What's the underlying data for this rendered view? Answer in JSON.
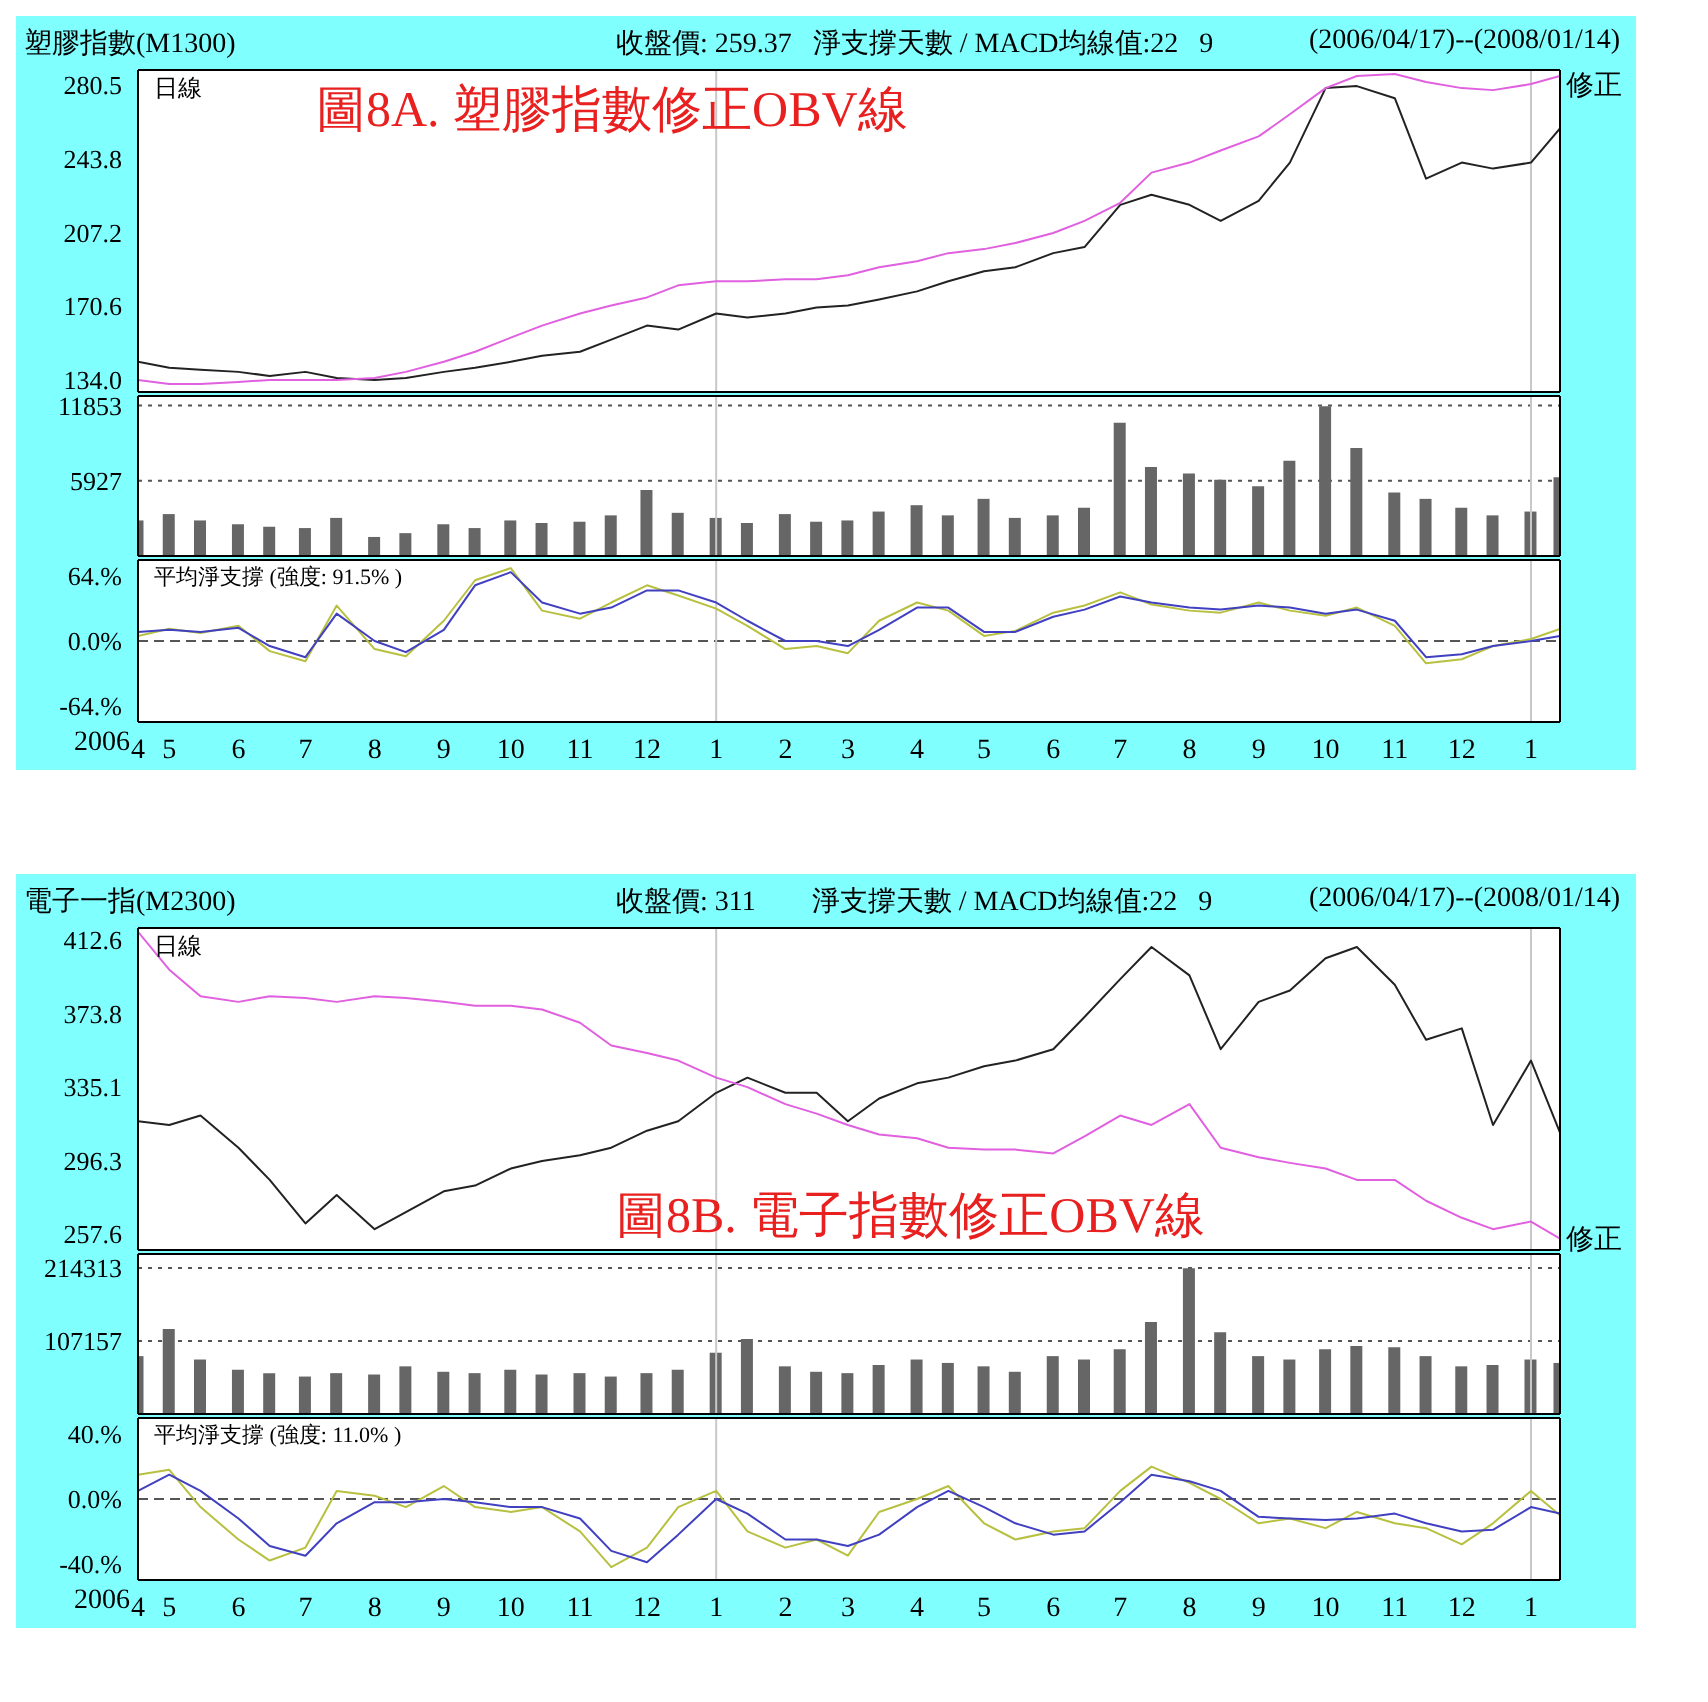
{
  "chart_data": [
    {
      "type": "line",
      "title": "塑膠指數(M1300)",
      "subtitle": "收盤價: 259.37   淨支撐天數 / MACD均線值:22   9",
      "annotations": [
        "(2006/04/17)--(2008/01/14)",
        "日線",
        "圖8A. 塑膠指數修正OBV線"
      ],
      "x": [
        "2006-04-17",
        "2006-05-01",
        "2006-05-15",
        "2006-06-01",
        "2006-06-15",
        "2006-07-01",
        "2006-07-15",
        "2006-08-01",
        "2006-08-15",
        "2006-09-01",
        "2006-09-15",
        "2006-10-01",
        "2006-10-15",
        "2006-11-01",
        "2006-11-15",
        "2006-12-01",
        "2006-12-15",
        "2007-01-01",
        "2007-01-15",
        "2007-02-01",
        "2007-02-15",
        "2007-03-01",
        "2007-03-15",
        "2007-04-01",
        "2007-04-15",
        "2007-05-01",
        "2007-05-15",
        "2007-06-01",
        "2007-06-15",
        "2007-07-01",
        "2007-07-15",
        "2007-08-01",
        "2007-08-15",
        "2007-09-01",
        "2007-09-15",
        "2007-10-01",
        "2007-10-15",
        "2007-11-01",
        "2007-11-15",
        "2007-12-01",
        "2007-12-15",
        "2008-01-01",
        "2008-01-14"
      ],
      "series": [
        {
          "color": "#222222",
          "values": [
            143,
            140,
            139,
            138,
            136,
            138,
            135,
            134,
            135,
            138,
            140,
            143,
            146,
            148,
            154,
            161,
            159,
            167,
            165,
            167,
            170,
            171,
            174,
            178,
            183,
            188,
            190,
            197,
            200,
            221,
            226,
            221,
            213,
            223,
            242,
            279,
            280,
            274,
            234,
            242,
            239,
            242,
            259
          ]
        },
        {
          "name": "修正",
          "color": "#e060e0",
          "values": [
            134,
            132,
            132,
            133,
            134,
            134,
            134,
            135,
            138,
            143,
            148,
            155,
            161,
            167,
            171,
            175,
            181,
            183,
            183,
            184,
            184,
            186,
            190,
            193,
            197,
            199,
            202,
            207,
            213,
            222,
            237,
            242,
            248,
            255,
            266,
            279,
            285,
            286,
            282,
            279,
            278,
            281,
            285
          ]
        }
      ],
      "xlim": [
        "2006-04-17",
        "2008-01-14"
      ],
      "ylim": [
        128,
        288
      ],
      "yticks": [
        {
          "value": 134,
          "label": "134.0"
        },
        170.6,
        207.2,
        243.8,
        280.5
      ],
      "tick_labels": "y",
      "marker": "none",
      "ref_lines": [
        {
          "axis": "x",
          "value": "2007-01-01",
          "color": "#c8c8c8"
        },
        {
          "axis": "x",
          "value": "2008-01-01",
          "color": "#c8c8c8"
        }
      ]
    },
    {
      "type": "bar",
      "x": [
        "2006-04-17",
        "2006-05-01",
        "2006-05-15",
        "2006-06-01",
        "2006-06-15",
        "2006-07-01",
        "2006-07-15",
        "2006-08-01",
        "2006-08-15",
        "2006-09-01",
        "2006-09-15",
        "2006-10-01",
        "2006-10-15",
        "2006-11-01",
        "2006-11-15",
        "2006-12-01",
        "2006-12-15",
        "2007-01-01",
        "2007-01-15",
        "2007-02-01",
        "2007-02-15",
        "2007-03-01",
        "2007-03-15",
        "2007-04-01",
        "2007-04-15",
        "2007-05-01",
        "2007-05-15",
        "2007-06-01",
        "2007-06-15",
        "2007-07-01",
        "2007-07-15",
        "2007-08-01",
        "2007-08-15",
        "2007-09-01",
        "2007-09-15",
        "2007-10-01",
        "2007-10-15",
        "2007-11-01",
        "2007-11-15",
        "2007-12-01",
        "2007-12-15",
        "2008-01-01",
        "2008-01-14"
      ],
      "values": [
        2800,
        3300,
        2800,
        2500,
        2300,
        2200,
        3000,
        1500,
        1800,
        2500,
        2200,
        2800,
        2600,
        2700,
        3200,
        5200,
        3400,
        3000,
        2600,
        3300,
        2700,
        2800,
        3500,
        4000,
        3200,
        4500,
        3000,
        3200,
        3800,
        10500,
        7000,
        6500,
        6000,
        5500,
        7500,
        11800,
        8500,
        5000,
        4500,
        3800,
        3200,
        3500,
        6200
      ],
      "color": "#666666",
      "xlim": [
        "2006-04-17",
        "2008-01-14"
      ],
      "ylim": [
        0,
        12600
      ],
      "yticks": [
        5927,
        11853
      ],
      "grid": "y",
      "tick_labels": "y",
      "ref_lines": [
        {
          "axis": "x",
          "value": "2007-01-01",
          "color": "#c8c8c8"
        },
        {
          "axis": "x",
          "value": "2008-01-01",
          "color": "#c8c8c8"
        }
      ]
    },
    {
      "type": "line",
      "annotations": [
        "平均淨支撐 (強度: 91.5% )"
      ],
      "xlabel": "2006",
      "x": [
        "2006-04-17",
        "2006-05-01",
        "2006-05-15",
        "2006-06-01",
        "2006-06-15",
        "2006-07-01",
        "2006-07-15",
        "2006-08-01",
        "2006-08-15",
        "2006-09-01",
        "2006-09-15",
        "2006-10-01",
        "2006-10-15",
        "2006-11-01",
        "2006-11-15",
        "2006-12-01",
        "2006-12-15",
        "2007-01-01",
        "2007-01-15",
        "2007-02-01",
        "2007-02-15",
        "2007-03-01",
        "2007-03-15",
        "2007-04-01",
        "2007-04-15",
        "2007-05-01",
        "2007-05-15",
        "2007-06-01",
        "2007-06-15",
        "2007-07-01",
        "2007-07-15",
        "2007-08-01",
        "2007-08-15",
        "2007-09-01",
        "2007-09-15",
        "2007-10-01",
        "2007-10-15",
        "2007-11-01",
        "2007-11-15",
        "2007-12-01",
        "2007-12-15",
        "2008-01-01",
        "2008-01-14"
      ],
      "series": [
        {
          "color": "#b8c040",
          "values": [
            5,
            12,
            8,
            15,
            -10,
            -20,
            35,
            -8,
            -15,
            20,
            60,
            72,
            30,
            22,
            38,
            55,
            45,
            32,
            15,
            -8,
            -5,
            -12,
            20,
            38,
            30,
            5,
            10,
            28,
            35,
            48,
            36,
            30,
            28,
            38,
            30,
            25,
            33,
            15,
            -22,
            -18,
            -5,
            2,
            12
          ]
        },
        {
          "color": "#4040c0",
          "values": [
            9,
            11,
            9,
            13,
            -5,
            -16,
            27,
            0,
            -11,
            11,
            55,
            68,
            38,
            27,
            33,
            50,
            50,
            38,
            20,
            0,
            0,
            -5,
            11,
            33,
            33,
            9,
            9,
            24,
            31,
            44,
            38,
            33,
            31,
            35,
            33,
            27,
            31,
            20,
            -16,
            -13,
            -5,
            0,
            5
          ]
        }
      ],
      "xlim": [
        "2006-04-17",
        "2008-01-14"
      ],
      "ylim": [
        -80,
        80
      ],
      "yticks": [
        {
          "value": 64,
          "label": "64.%"
        },
        {
          "value": 0,
          "label": "0.0%"
        },
        {
          "value": -64,
          "label": "-64.%"
        }
      ],
      "xticks": [
        {
          "value": "2006-04-17",
          "label": "4"
        },
        {
          "value": "2006-05-01",
          "label": "5"
        },
        {
          "value": "2006-06-01",
          "label": "6"
        },
        {
          "value": "2006-07-01",
          "label": "7"
        },
        {
          "value": "2006-08-01",
          "label": "8"
        },
        {
          "value": "2006-09-01",
          "label": "9"
        },
        {
          "value": "2006-10-01",
          "label": "10"
        },
        {
          "value": "2006-11-01",
          "label": "11"
        },
        {
          "value": "2006-12-01",
          "label": "12"
        },
        {
          "value": "2007-01-01",
          "label": "1"
        },
        {
          "value": "2007-02-01",
          "label": "2"
        },
        {
          "value": "2007-03-01",
          "label": "3"
        },
        {
          "value": "2007-04-01",
          "label": "4"
        },
        {
          "value": "2007-05-01",
          "label": "5"
        },
        {
          "value": "2007-06-01",
          "label": "6"
        },
        {
          "value": "2007-07-01",
          "label": "7"
        },
        {
          "value": "2007-08-01",
          "label": "8"
        },
        {
          "value": "2007-09-01",
          "label": "9"
        },
        {
          "value": "2007-10-01",
          "label": "10"
        },
        {
          "value": "2007-11-01",
          "label": "11"
        },
        {
          "value": "2007-12-01",
          "label": "12"
        },
        {
          "value": "2008-01-01",
          "label": "1"
        }
      ],
      "marker": "none",
      "ref_lines": [
        {
          "axis": "y",
          "value": 0,
          "color": "#555555",
          "line_style": "dashed"
        },
        {
          "axis": "x",
          "value": "2007-01-01",
          "color": "#c8c8c8"
        },
        {
          "axis": "x",
          "value": "2008-01-01",
          "color": "#c8c8c8"
        }
      ]
    },
    {
      "type": "line",
      "title": "電子一指(M2300)",
      "subtitle": "收盤價: 311        淨支撐天數 / MACD均線值:22   9",
      "annotations": [
        "(2006/04/17)--(2008/01/14)",
        "日線",
        "圖8B. 電子指數修正OBV線"
      ],
      "x": [
        "2006-04-17",
        "2006-05-01",
        "2006-05-15",
        "2006-06-01",
        "2006-06-15",
        "2006-07-01",
        "2006-07-15",
        "2006-08-01",
        "2006-08-15",
        "2006-09-01",
        "2006-09-15",
        "2006-10-01",
        "2006-10-15",
        "2006-11-01",
        "2006-11-15",
        "2006-12-01",
        "2006-12-15",
        "2007-01-01",
        "2007-01-15",
        "2007-02-01",
        "2007-02-15",
        "2007-03-01",
        "2007-03-15",
        "2007-04-01",
        "2007-04-15",
        "2007-05-01",
        "2007-05-15",
        "2007-06-01",
        "2007-06-15",
        "2007-07-01",
        "2007-07-15",
        "2007-08-01",
        "2007-08-15",
        "2007-09-01",
        "2007-09-15",
        "2007-10-01",
        "2007-10-15",
        "2007-11-01",
        "2007-11-15",
        "2007-12-01",
        "2007-12-15",
        "2008-01-01",
        "2008-01-14"
      ],
      "series": [
        {
          "color": "#222222",
          "values": [
            317,
            315,
            320,
            303,
            286,
            263,
            278,
            260,
            269,
            280,
            283,
            292,
            296,
            299,
            303,
            312,
            317,
            332,
            340,
            332,
            332,
            317,
            329,
            337,
            340,
            346,
            349,
            355,
            372,
            392,
            409,
            394,
            355,
            380,
            386,
            403,
            409,
            389,
            360,
            366,
            315,
            349,
            311
          ]
        },
        {
          "name": "修正",
          "color": "#e060e0",
          "values": [
            417,
            397,
            383,
            380,
            383,
            382,
            380,
            383,
            382,
            380,
            378,
            378,
            376,
            369,
            357,
            353,
            349,
            340,
            335,
            326,
            321,
            315,
            310,
            308,
            303,
            302,
            302,
            300,
            309,
            320,
            315,
            326,
            303,
            298,
            295,
            292,
            286,
            286,
            275,
            266,
            260,
            264,
            255
          ]
        }
      ],
      "xlim": [
        "2006-04-17",
        "2008-01-14"
      ],
      "ylim": [
        249,
        419
      ],
      "yticks": [
        257.6,
        296.3,
        335.1,
        373.8,
        412.6
      ],
      "tick_labels": "y",
      "marker": "none",
      "ref_lines": [
        {
          "axis": "x",
          "value": "2007-01-01",
          "color": "#c8c8c8"
        },
        {
          "axis": "x",
          "value": "2008-01-01",
          "color": "#c8c8c8"
        }
      ]
    },
    {
      "type": "bar",
      "x": [
        "2006-04-17",
        "2006-05-01",
        "2006-05-15",
        "2006-06-01",
        "2006-06-15",
        "2006-07-01",
        "2006-07-15",
        "2006-08-01",
        "2006-08-15",
        "2006-09-01",
        "2006-09-15",
        "2006-10-01",
        "2006-10-15",
        "2006-11-01",
        "2006-11-15",
        "2006-12-01",
        "2006-12-15",
        "2007-01-01",
        "2007-01-15",
        "2007-02-01",
        "2007-02-15",
        "2007-03-01",
        "2007-03-15",
        "2007-04-01",
        "2007-04-15",
        "2007-05-01",
        "2007-05-15",
        "2007-06-01",
        "2007-06-15",
        "2007-07-01",
        "2007-07-15",
        "2007-08-01",
        "2007-08-15",
        "2007-09-01",
        "2007-09-15",
        "2007-10-01",
        "2007-10-15",
        "2007-11-01",
        "2007-11-15",
        "2007-12-01",
        "2007-12-15",
        "2008-01-01",
        "2008-01-14"
      ],
      "values": [
        85000,
        125000,
        80000,
        65000,
        60000,
        55000,
        60000,
        58000,
        70000,
        62000,
        60000,
        65000,
        58000,
        60000,
        55000,
        60000,
        65000,
        90000,
        110000,
        70000,
        62000,
        60000,
        72000,
        80000,
        75000,
        70000,
        62000,
        85000,
        80000,
        95000,
        135000,
        214000,
        120000,
        85000,
        80000,
        95000,
        100000,
        98000,
        85000,
        70000,
        72000,
        80000,
        75000
      ],
      "color": "#666666",
      "xlim": [
        "2006-04-17",
        "2008-01-14"
      ],
      "ylim": [
        0,
        235000
      ],
      "yticks": [
        107157,
        214313
      ],
      "grid": "y",
      "tick_labels": "y",
      "ref_lines": [
        {
          "axis": "x",
          "value": "2007-01-01",
          "color": "#c8c8c8"
        },
        {
          "axis": "x",
          "value": "2008-01-01",
          "color": "#c8c8c8"
        }
      ]
    },
    {
      "type": "line",
      "annotations": [
        "平均淨支撐 (強度: 11.0% )"
      ],
      "xlabel": "2006",
      "x": [
        "2006-04-17",
        "2006-05-01",
        "2006-05-15",
        "2006-06-01",
        "2006-06-15",
        "2006-07-01",
        "2006-07-15",
        "2006-08-01",
        "2006-08-15",
        "2006-09-01",
        "2006-09-15",
        "2006-10-01",
        "2006-10-15",
        "2006-11-01",
        "2006-11-15",
        "2006-12-01",
        "2006-12-15",
        "2007-01-01",
        "2007-01-15",
        "2007-02-01",
        "2007-02-15",
        "2007-03-01",
        "2007-03-15",
        "2007-04-01",
        "2007-04-15",
        "2007-05-01",
        "2007-05-15",
        "2007-06-01",
        "2007-06-15",
        "2007-07-01",
        "2007-07-15",
        "2007-08-01",
        "2007-08-15",
        "2007-09-01",
        "2007-09-15",
        "2007-10-01",
        "2007-10-15",
        "2007-11-01",
        "2007-11-15",
        "2007-12-01",
        "2007-12-15",
        "2008-01-01",
        "2008-01-14"
      ],
      "series": [
        {
          "color": "#b8c040",
          "values": [
            15,
            18,
            -5,
            -25,
            -38,
            -30,
            5,
            2,
            -5,
            8,
            -5,
            -8,
            -5,
            -20,
            -42,
            -30,
            -5,
            5,
            -20,
            -30,
            -25,
            -35,
            -8,
            0,
            8,
            -15,
            -25,
            -20,
            -18,
            5,
            20,
            10,
            0,
            -15,
            -12,
            -18,
            -8,
            -15,
            -18,
            -28,
            -15,
            5,
            -10
          ]
        },
        {
          "color": "#4040c0",
          "values": [
            5,
            15,
            5,
            -12,
            -29,
            -35,
            -15,
            -2,
            -2,
            0,
            -2,
            -5,
            -5,
            -12,
            -32,
            -39,
            -22,
            0,
            -9,
            -25,
            -25,
            -29,
            -22,
            -5,
            5,
            -5,
            -15,
            -22,
            -20,
            -2,
            15,
            11,
            5,
            -11,
            -12,
            -13,
            -12,
            -9,
            -15,
            -20,
            -19,
            -5,
            -9
          ]
        }
      ],
      "xlim": [
        "2006-04-17",
        "2008-01-14"
      ],
      "ylim": [
        -50,
        50
      ],
      "yticks": [
        {
          "value": 40,
          "label": "40.%"
        },
        {
          "value": 0,
          "label": "0.0%"
        },
        {
          "value": -40,
          "label": "-40.%"
        }
      ],
      "xticks": [
        {
          "value": "2006-04-17",
          "label": "4"
        },
        {
          "value": "2006-05-01",
          "label": "5"
        },
        {
          "value": "2006-06-01",
          "label": "6"
        },
        {
          "value": "2006-07-01",
          "label": "7"
        },
        {
          "value": "2006-08-01",
          "label": "8"
        },
        {
          "value": "2006-09-01",
          "label": "9"
        },
        {
          "value": "2006-10-01",
          "label": "10"
        },
        {
          "value": "2006-11-01",
          "label": "11"
        },
        {
          "value": "2006-12-01",
          "label": "12"
        },
        {
          "value": "2007-01-01",
          "label": "1"
        },
        {
          "value": "2007-02-01",
          "label": "2"
        },
        {
          "value": "2007-03-01",
          "label": "3"
        },
        {
          "value": "2007-04-01",
          "label": "4"
        },
        {
          "value": "2007-05-01",
          "label": "5"
        },
        {
          "value": "2007-06-01",
          "label": "6"
        },
        {
          "value": "2007-07-01",
          "label": "7"
        },
        {
          "value": "2007-08-01",
          "label": "8"
        },
        {
          "value": "2007-09-01",
          "label": "9"
        },
        {
          "value": "2007-10-01",
          "label": "10"
        },
        {
          "value": "2007-11-01",
          "label": "11"
        },
        {
          "value": "2007-12-01",
          "label": "12"
        },
        {
          "value": "2008-01-01",
          "label": "1"
        }
      ],
      "marker": "none",
      "ref_lines": [
        {
          "axis": "y",
          "value": 0,
          "color": "#555555",
          "line_style": "dashed"
        },
        {
          "axis": "x",
          "value": "2007-01-01",
          "color": "#c8c8c8"
        },
        {
          "axis": "x",
          "value": "2008-01-01",
          "color": "#c8c8c8"
        }
      ]
    }
  ]
}
